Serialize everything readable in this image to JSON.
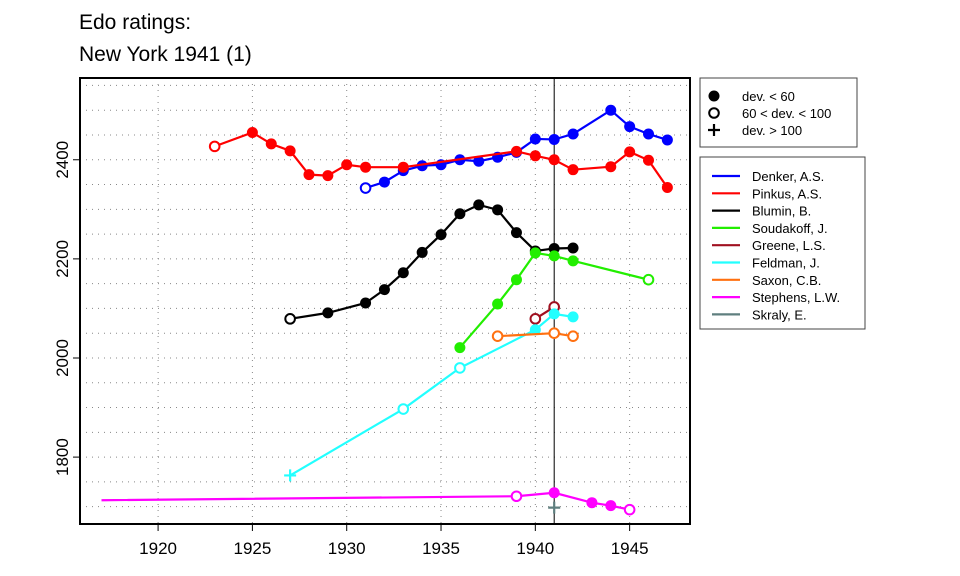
{
  "chart_data": {
    "type": "line",
    "title": [
      "Edo ratings:",
      "New York 1941 (1)"
    ],
    "xlabel": "",
    "ylabel": "",
    "xlim": [
      1915.86,
      1948.2
    ],
    "ylim": [
      1665,
      2565
    ],
    "x_ticks": [
      1920,
      1925,
      1930,
      1935,
      1940,
      1945
    ],
    "y_ticks": [
      1800,
      2000,
      2200,
      2400
    ],
    "y_grid_step": 50,
    "grid": true,
    "reference_line_x": 1941,
    "marker_legend": {
      "position": "top-right-outside",
      "entries": [
        {
          "marker": "filled",
          "label": "dev. < 60"
        },
        {
          "marker": "open",
          "label": "60 < dev. < 100"
        },
        {
          "marker": "plus",
          "label": "dev. > 100"
        }
      ]
    },
    "series_legend_position": "right-outside",
    "series": [
      {
        "name": "Denker, A.S.",
        "color": "#0000ff",
        "points": [
          [
            1931,
            2343,
            "o"
          ],
          [
            1932,
            2355,
            "f"
          ],
          [
            1933,
            2378,
            "f"
          ],
          [
            1934,
            2388,
            "f"
          ],
          [
            1935,
            2390,
            "f"
          ],
          [
            1936,
            2400,
            "f"
          ],
          [
            1937,
            2397,
            "f"
          ],
          [
            1938,
            2405,
            "f"
          ],
          [
            1939,
            2415,
            "f"
          ],
          [
            1940,
            2442,
            "f"
          ],
          [
            1941,
            2441,
            "f"
          ],
          [
            1942,
            2452,
            "f"
          ],
          [
            1944,
            2500,
            "f"
          ],
          [
            1945,
            2467,
            "f"
          ],
          [
            1946,
            2452,
            "f"
          ],
          [
            1947,
            2440,
            "f"
          ]
        ]
      },
      {
        "name": "Pinkus, A.S.",
        "color": "#ff0000",
        "points": [
          [
            1923,
            2427,
            "o"
          ],
          [
            1925,
            2455,
            "f"
          ],
          [
            1926,
            2432,
            "f"
          ],
          [
            1927,
            2418,
            "f"
          ],
          [
            1928,
            2370,
            "f"
          ],
          [
            1929,
            2368,
            "f"
          ],
          [
            1930,
            2390,
            "f"
          ],
          [
            1931,
            2385,
            "f"
          ],
          [
            1933,
            2385,
            "f"
          ],
          [
            1939,
            2417,
            "f"
          ],
          [
            1940,
            2408,
            "f"
          ],
          [
            1941,
            2400,
            "f"
          ],
          [
            1942,
            2380,
            "f"
          ],
          [
            1944,
            2386,
            "f"
          ],
          [
            1945,
            2416,
            "f"
          ],
          [
            1946,
            2399,
            "f"
          ],
          [
            1947,
            2344,
            "f"
          ]
        ]
      },
      {
        "name": "Blumin, B.",
        "color": "#000000",
        "points": [
          [
            1927,
            2079,
            "o"
          ],
          [
            1929,
            2091,
            "f"
          ],
          [
            1931,
            2111,
            "f"
          ],
          [
            1932,
            2138,
            "f"
          ],
          [
            1933,
            2172,
            "f"
          ],
          [
            1934,
            2213,
            "f"
          ],
          [
            1935,
            2249,
            "f"
          ],
          [
            1936,
            2291,
            "f"
          ],
          [
            1937,
            2309,
            "f"
          ],
          [
            1938,
            2299,
            "f"
          ],
          [
            1939,
            2253,
            "f"
          ],
          [
            1940,
            2216,
            "f"
          ],
          [
            1941,
            2221,
            "f"
          ],
          [
            1942,
            2222,
            "f"
          ]
        ]
      },
      {
        "name": "Soudakoff, J.",
        "color": "#22ee00",
        "points": [
          [
            1936,
            2021,
            "f"
          ],
          [
            1938,
            2109,
            "f"
          ],
          [
            1939,
            2158,
            "f"
          ],
          [
            1940,
            2212,
            "f"
          ],
          [
            1941,
            2206,
            "f"
          ],
          [
            1942,
            2196,
            "f"
          ],
          [
            1946,
            2158,
            "o"
          ]
        ]
      },
      {
        "name": "Greene, L.S.",
        "color": "#a01020",
        "points": [
          [
            1940,
            2079,
            "o"
          ],
          [
            1941,
            2103,
            "o"
          ]
        ]
      },
      {
        "name": "Feldman, J.",
        "color": "#22ffff",
        "points": [
          [
            1927,
            1763,
            "p"
          ],
          [
            1933,
            1897,
            "o"
          ],
          [
            1936,
            1980,
            "o"
          ],
          [
            1940,
            2057,
            "f"
          ],
          [
            1941,
            2089,
            "f"
          ],
          [
            1942,
            2083,
            "f"
          ]
        ]
      },
      {
        "name": "Saxon, C.B.",
        "color": "#ff7010",
        "points": [
          [
            1938,
            2044,
            "o"
          ],
          [
            1941,
            2050,
            "o"
          ],
          [
            1942,
            2044,
            "o"
          ]
        ]
      },
      {
        "name": "Stephens, L.W.",
        "color": "#ff00ff",
        "points": [
          [
            1917,
            1713,
            "n"
          ],
          [
            1939,
            1721,
            "o"
          ],
          [
            1941,
            1728,
            "f"
          ],
          [
            1943,
            1708,
            "f"
          ],
          [
            1944,
            1702,
            "f"
          ],
          [
            1945,
            1694,
            "o"
          ]
        ]
      },
      {
        "name": "Skraly, E.",
        "color": "#5f7f7f",
        "points": [
          [
            1941,
            1698,
            "p"
          ]
        ]
      }
    ]
  }
}
